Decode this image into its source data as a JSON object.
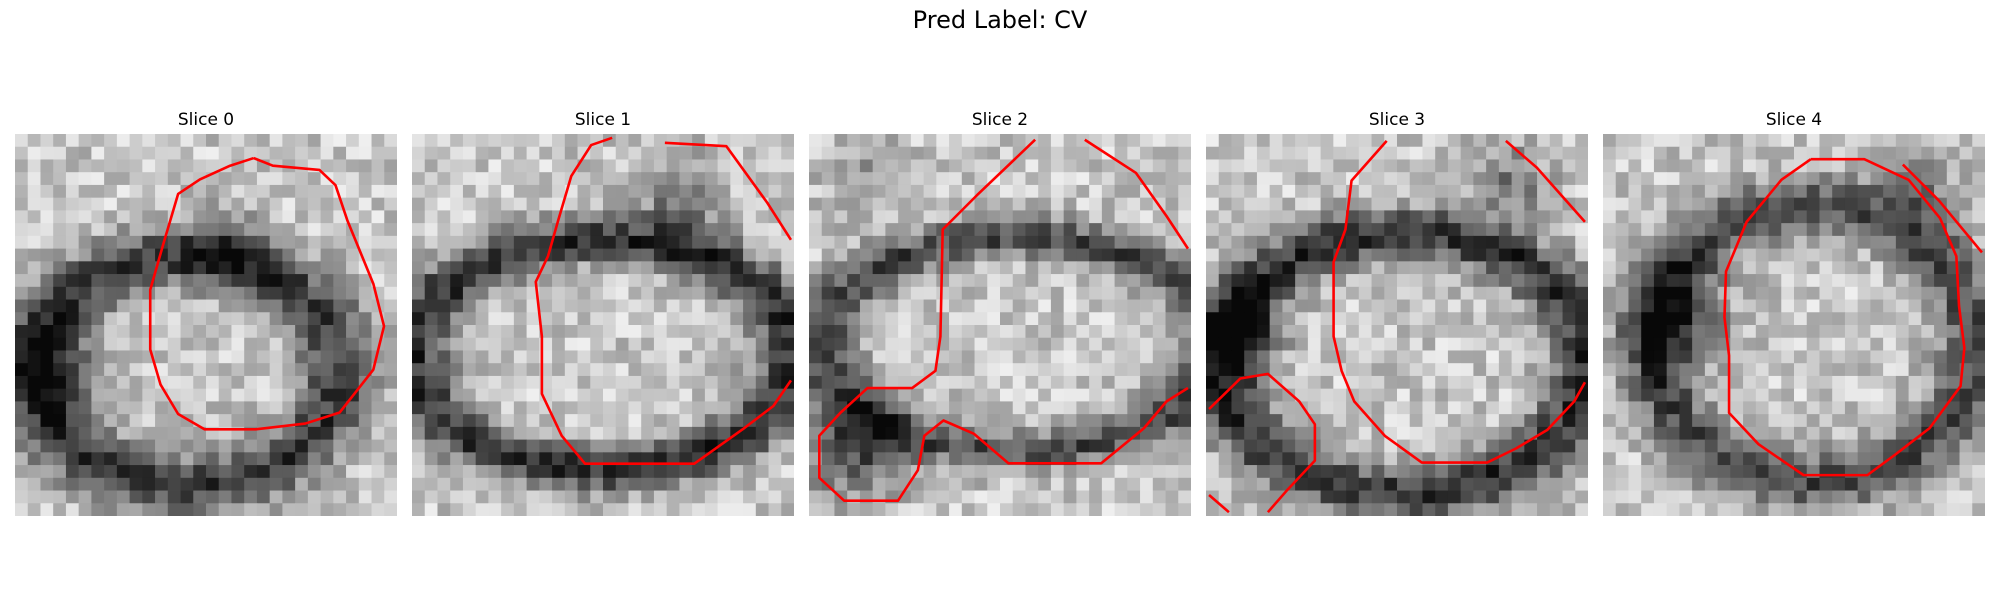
{
  "figure": {
    "title": "Pred Label: CV"
  },
  "panels": [
    {
      "title": "Slice 0"
    },
    {
      "title": "Slice 1"
    },
    {
      "title": "Slice 2"
    },
    {
      "title": "Slice 3"
    },
    {
      "title": "Slice 4"
    }
  ],
  "colors": {
    "contour": "#ff0000",
    "background": "#ffffff"
  }
}
